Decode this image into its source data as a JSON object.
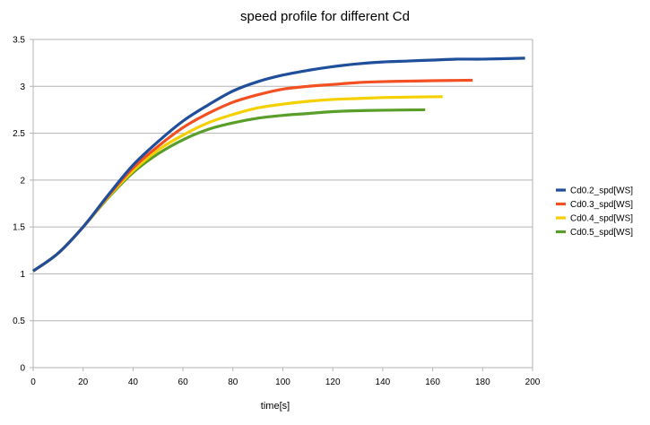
{
  "chart_data": {
    "type": "line",
    "title": "speed profile for different Cd",
    "xlabel": "time[s]",
    "ylabel": "",
    "xlim": [
      0,
      200
    ],
    "ylim": [
      0,
      3.5
    ],
    "x_ticks": [
      "0",
      "20",
      "40",
      "60",
      "80",
      "100",
      "120",
      "140",
      "160",
      "180",
      "200"
    ],
    "y_ticks": [
      "0",
      "0.5",
      "1",
      "1.5",
      "2",
      "2.5",
      "3",
      "3.5"
    ],
    "grid": "horizontal",
    "legend_position": "right",
    "series": [
      {
        "name": "Cd0.2_spd[WS]",
        "color": "#1f4e9a",
        "x": [
          0,
          10,
          20,
          30,
          40,
          50,
          60,
          70,
          80,
          90,
          100,
          110,
          120,
          130,
          140,
          150,
          160,
          170,
          180,
          197
        ],
        "values": [
          1.03,
          1.22,
          1.5,
          1.84,
          2.16,
          2.41,
          2.63,
          2.8,
          2.95,
          3.05,
          3.12,
          3.17,
          3.21,
          3.24,
          3.26,
          3.27,
          3.28,
          3.29,
          3.29,
          3.3
        ]
      },
      {
        "name": "Cd0.3_spd[WS]",
        "color": "#f25022",
        "x": [
          0,
          10,
          20,
          30,
          40,
          50,
          60,
          70,
          80,
          90,
          100,
          110,
          120,
          130,
          140,
          150,
          160,
          176
        ],
        "values": [
          1.03,
          1.22,
          1.5,
          1.83,
          2.13,
          2.36,
          2.56,
          2.71,
          2.83,
          2.91,
          2.97,
          3.0,
          3.02,
          3.04,
          3.05,
          3.055,
          3.06,
          3.065
        ]
      },
      {
        "name": "Cd0.4_spd[WS]",
        "color": "#f5d000",
        "x": [
          0,
          10,
          20,
          30,
          40,
          50,
          60,
          70,
          80,
          90,
          100,
          110,
          120,
          130,
          140,
          150,
          164
        ],
        "values": [
          1.03,
          1.22,
          1.5,
          1.82,
          2.1,
          2.32,
          2.48,
          2.61,
          2.7,
          2.77,
          2.81,
          2.84,
          2.86,
          2.87,
          2.88,
          2.885,
          2.89
        ]
      },
      {
        "name": "Cd0.5_spd[WS]",
        "color": "#5a9e2a",
        "x": [
          0,
          10,
          20,
          30,
          40,
          50,
          60,
          70,
          80,
          90,
          100,
          110,
          120,
          130,
          140,
          157
        ],
        "values": [
          1.03,
          1.22,
          1.5,
          1.81,
          2.08,
          2.28,
          2.43,
          2.54,
          2.61,
          2.66,
          2.69,
          2.71,
          2.73,
          2.74,
          2.745,
          2.75
        ]
      }
    ]
  }
}
